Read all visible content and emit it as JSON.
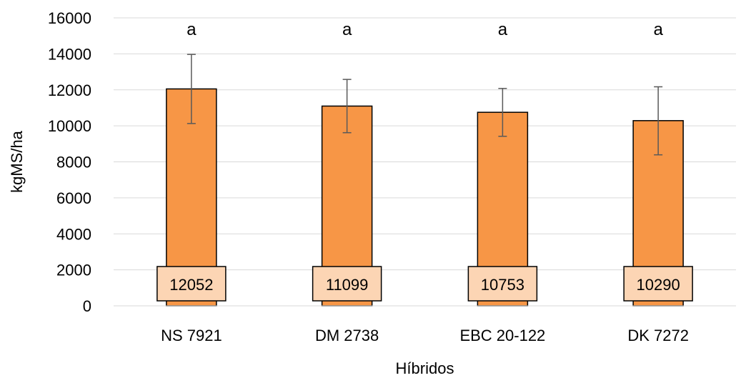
{
  "chart_data": {
    "type": "bar",
    "title": "",
    "xlabel": "Híbridos",
    "ylabel": "kgMS/ha",
    "ylim": [
      0,
      16000
    ],
    "yticks": [
      0,
      2000,
      4000,
      6000,
      8000,
      10000,
      12000,
      14000,
      16000
    ],
    "grid": true,
    "legend": "none",
    "categories": [
      "NS 7921",
      "DM 2738",
      "EBC 20-122",
      "DK 7272"
    ],
    "series": [
      {
        "values": [
          12052,
          11099,
          10753,
          10290
        ],
        "error_bars": [
          [
            10130,
            13970
          ],
          [
            9620,
            12580
          ],
          [
            9420,
            12080
          ],
          [
            8390,
            12170
          ]
        ],
        "data_labels": [
          "12052",
          "11099",
          "10753",
          "10290"
        ],
        "significance_letters": [
          "a",
          "a",
          "a",
          "a"
        ],
        "color": "#F79646",
        "label_box_color": "#FCD5B4"
      }
    ]
  }
}
